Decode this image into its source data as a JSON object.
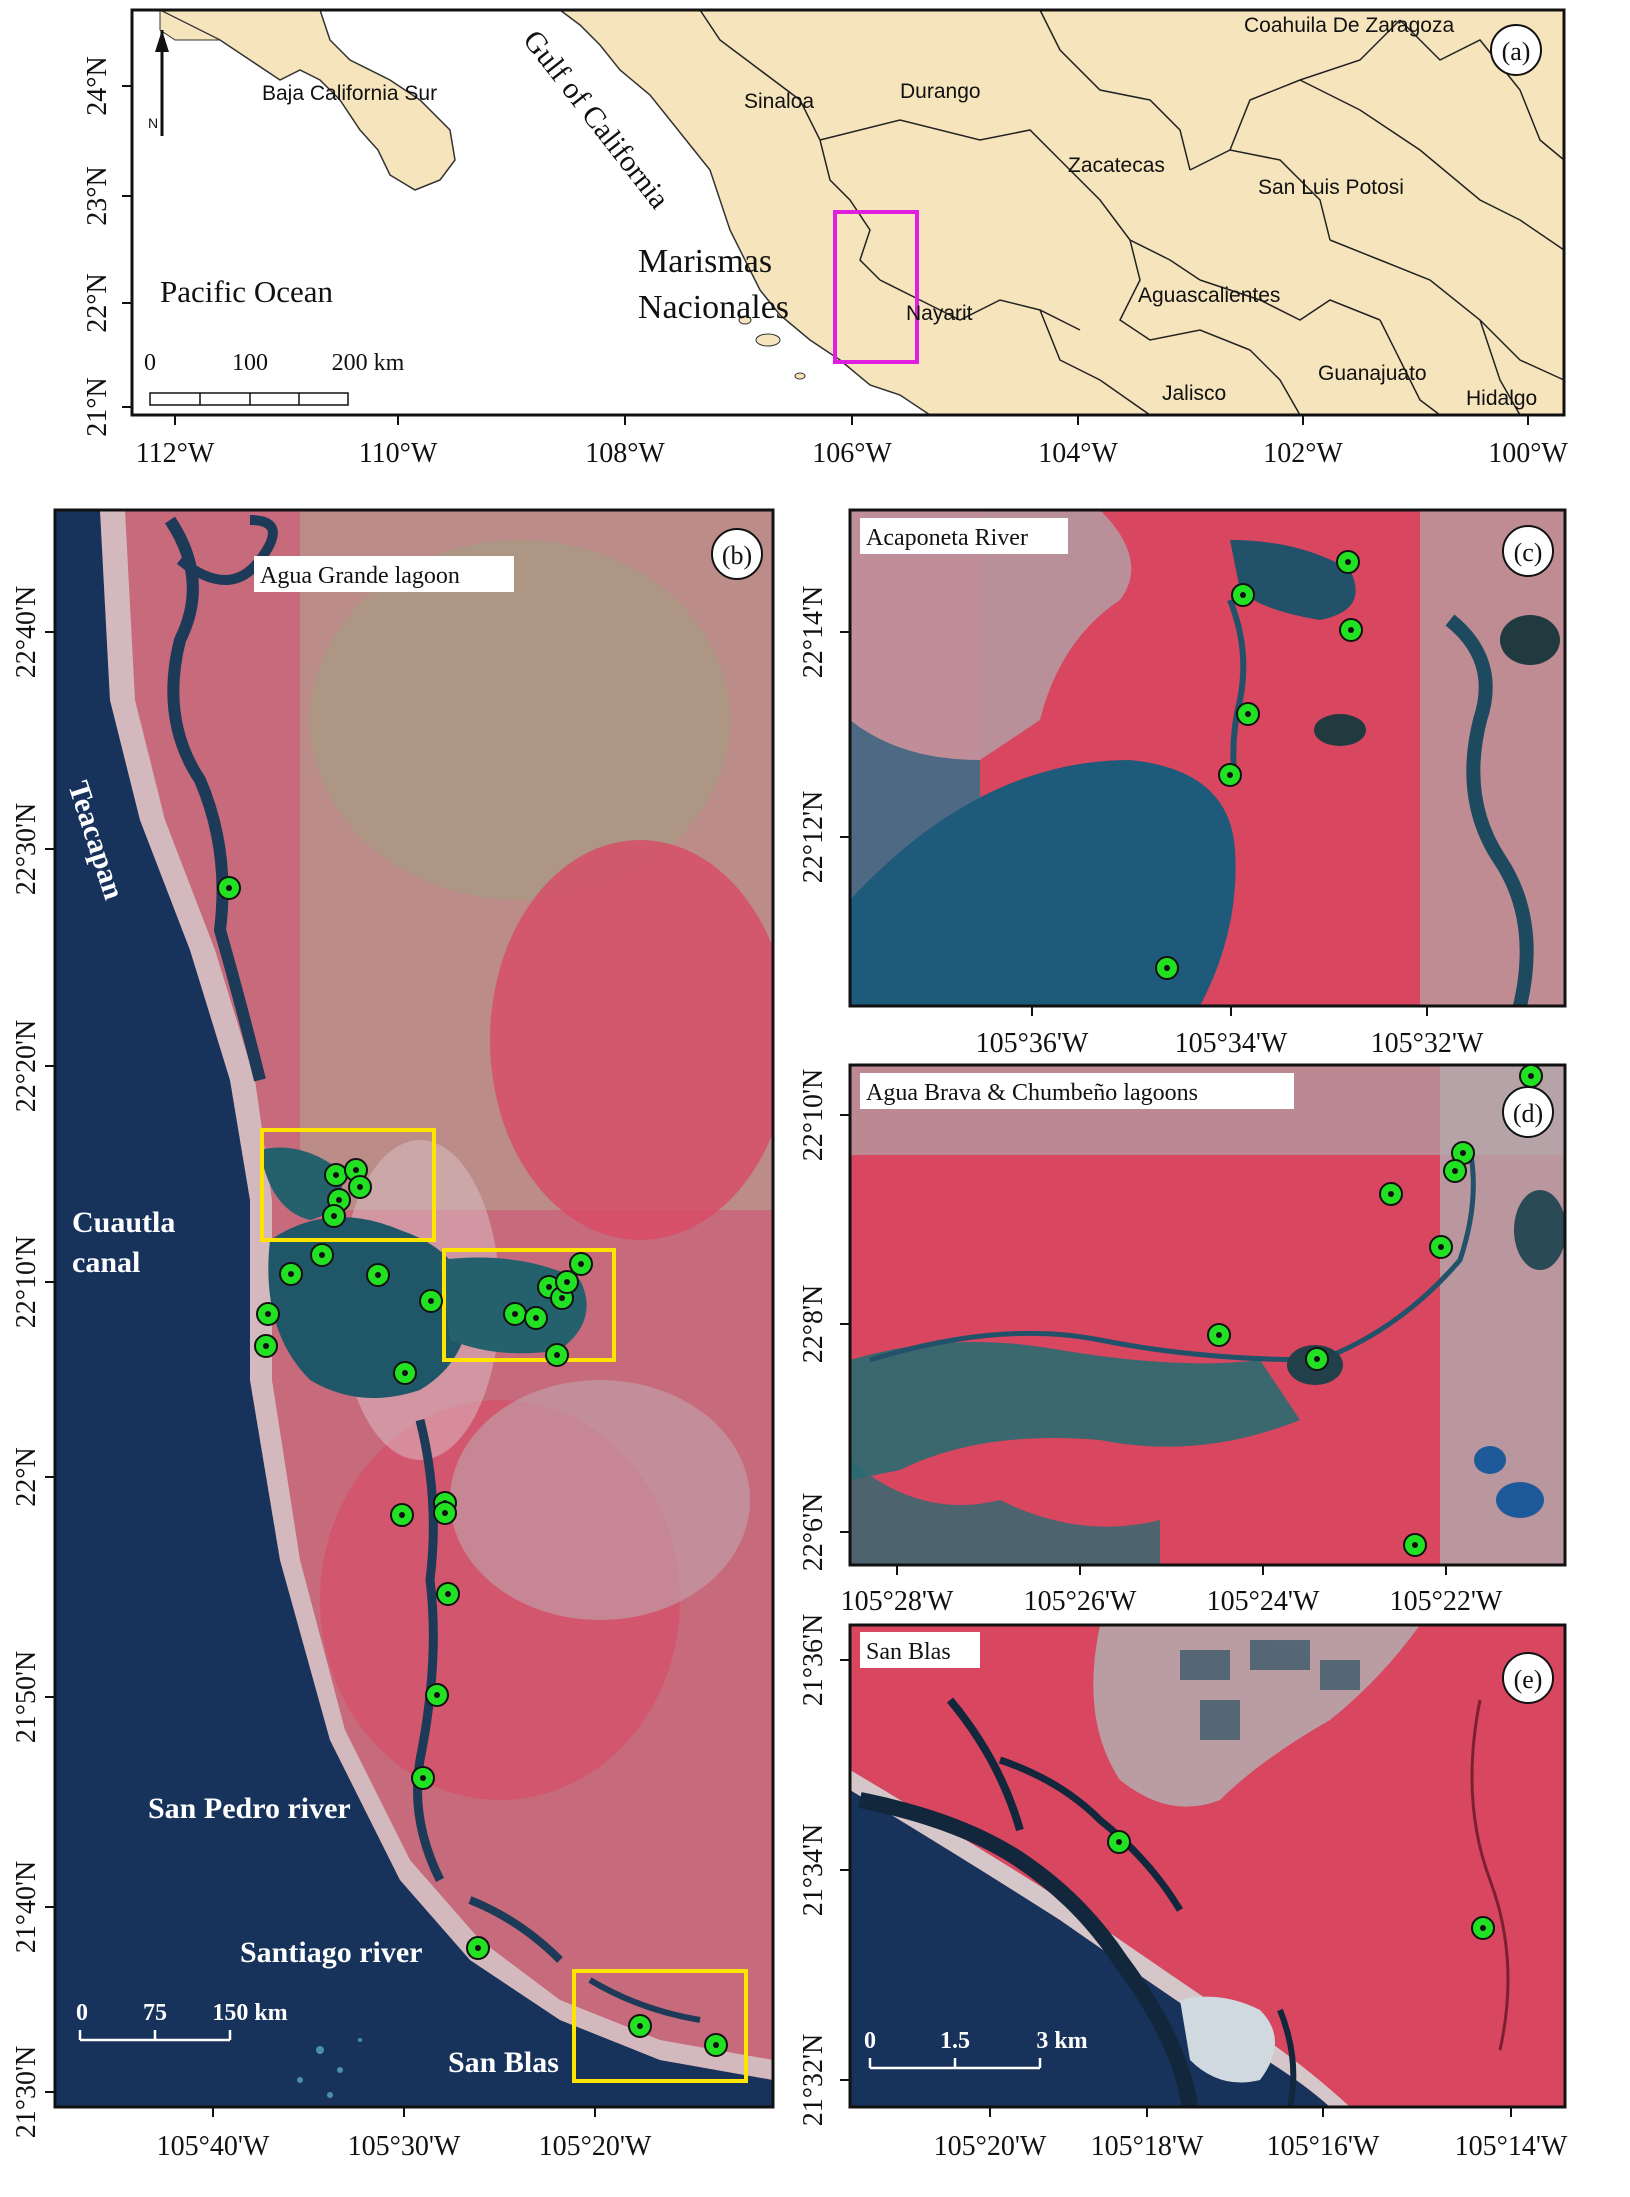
{
  "panel_a": {
    "letter": "(a)",
    "lon_ticks": [
      "112°W",
      "110°W",
      "108°W",
      "106°W",
      "104°W",
      "102°W",
      "100°W"
    ],
    "lat_ticks": [
      "24°N",
      "23°N",
      "22°N",
      "21°N"
    ],
    "places": {
      "baja": "Baja California Sur",
      "gulf": "Gulf of California",
      "sinaloa": "Sinaloa",
      "durango": "Durango",
      "coahuila": "Coahuila De Zaragoza",
      "zacatecas": "Zacatecas",
      "slp": "San Luis Potosi",
      "nayarit": "Nayarit",
      "ags": "Aguascalientes",
      "jalisco": "Jalisco",
      "guanajuato": "Guanajuato",
      "hidalgo": "Hidalgo",
      "pacific": "Pacific Ocean",
      "marismas1": "Marismas",
      "marismas2": "Nacionales"
    },
    "north": "N",
    "scale": [
      "0",
      "100",
      "200 km"
    ],
    "colors": {
      "land": "#f6e4bd",
      "sea": "#ffffff",
      "border": "#222222",
      "study_box": "#e01ee0"
    }
  },
  "panel_b": {
    "letter": "(b)",
    "title": "Agua Grande lagoon",
    "lon_ticks": [
      "105°40'W",
      "105°30'W",
      "105°20'W"
    ],
    "lat_ticks": [
      "22°40'N",
      "22°30'N",
      "22°20'N",
      "22°10'N",
      "22°N",
      "21°50'N",
      "21°40'N",
      "21°30'N"
    ],
    "water_labels": {
      "teacapan": "Teacapan",
      "cuautla1": "Cuautla",
      "cuautla2": "canal",
      "san_pedro": "San Pedro river",
      "santiago": "Santiago river",
      "san_blas": "San Blas"
    },
    "scale": [
      "0",
      "75",
      "150 km"
    ],
    "box_color": "#ffe400"
  },
  "panel_c": {
    "letter": "(c)",
    "title": "Acaponeta River",
    "lon_ticks": [
      "105°36'W",
      "105°34'W",
      "105°32'W"
    ],
    "lat_ticks": [
      "22°14'N",
      "22°12'N"
    ]
  },
  "panel_d": {
    "letter": "(d)",
    "title": "Agua Brava & Chumbeño lagoons",
    "lon_ticks": [
      "105°28'W",
      "105°26'W",
      "105°24'W",
      "105°22'W"
    ],
    "lat_ticks": [
      "22°10'N",
      "22°8'N",
      "22°6'N"
    ]
  },
  "panel_e": {
    "letter": "(e)",
    "title": "San Blas",
    "lon_ticks": [
      "105°20'W",
      "105°18'W",
      "105°16'W",
      "105°14'W"
    ],
    "lat_ticks": [
      "21°36'N",
      "21°34'N",
      "21°32'N"
    ],
    "scale": [
      "0",
      "1.5",
      "3 km"
    ]
  },
  "image_colors": {
    "vegetation": "#d8465f",
    "water": "#1d4f6e",
    "sea": "#17335b",
    "bare": "#b7a9ae",
    "marker": "#22e022"
  }
}
